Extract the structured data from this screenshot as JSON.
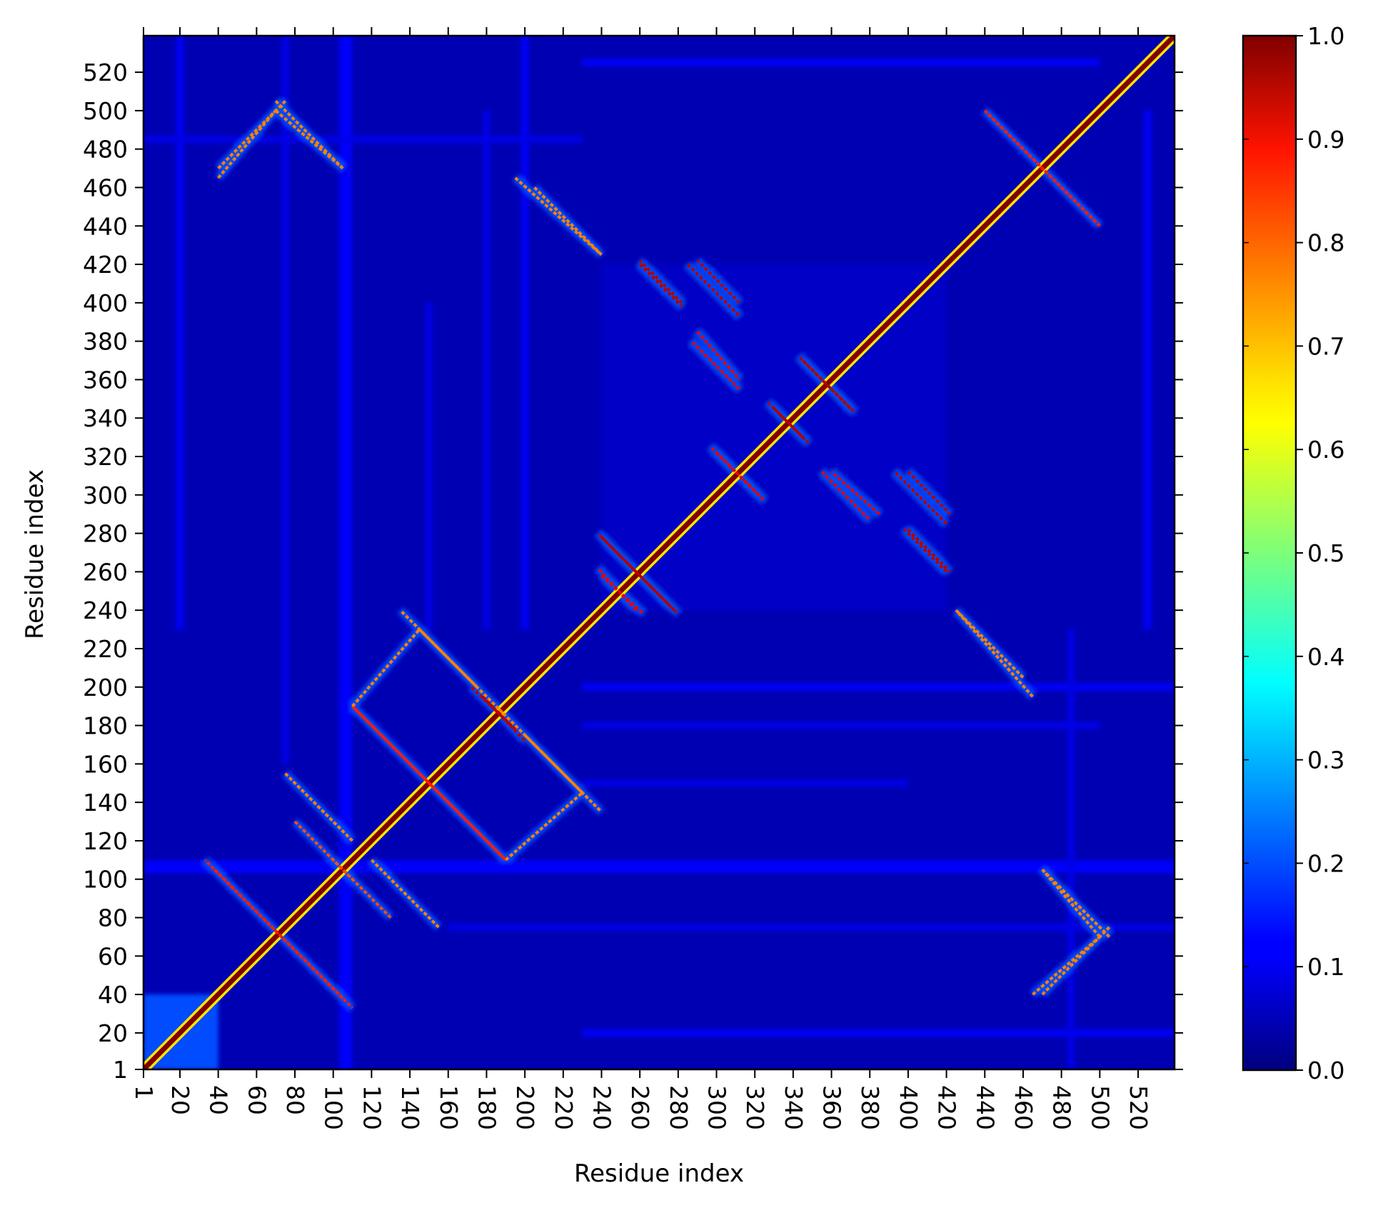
{
  "chart_data": {
    "type": "heatmap",
    "title": "",
    "xlabel": "Residue index",
    "ylabel": "Residue index",
    "xlim": [
      1,
      539
    ],
    "ylim": [
      1,
      539
    ],
    "x_ticks": [
      1,
      20,
      40,
      60,
      80,
      100,
      120,
      140,
      160,
      180,
      200,
      220,
      240,
      260,
      280,
      300,
      320,
      340,
      360,
      380,
      400,
      420,
      440,
      460,
      480,
      500,
      520
    ],
    "y_ticks": [
      1,
      20,
      40,
      60,
      80,
      100,
      120,
      140,
      160,
      180,
      200,
      220,
      240,
      260,
      280,
      300,
      320,
      340,
      360,
      380,
      400,
      420,
      440,
      460,
      480,
      500,
      520
    ],
    "x_tick_rotation": "vertical",
    "colormap": "jet",
    "colorbar": {
      "range": [
        0.0,
        1.0
      ],
      "ticks": [
        "0.0",
        "0.1",
        "0.2",
        "0.3",
        "0.4",
        "0.5",
        "0.6",
        "0.7",
        "0.8",
        "0.9",
        "1.0"
      ],
      "placement": "right"
    },
    "background_value": 0.05,
    "matrix_symmetric": true,
    "features": [
      {
        "kind": "diagonal",
        "from": 1,
        "to": 539,
        "value": 1.0
      },
      {
        "kind": "block",
        "x": [
          1,
          40
        ],
        "y": [
          1,
          40
        ],
        "value": 0.2
      },
      {
        "kind": "stripe",
        "axis": "y",
        "at": 105,
        "range": [
          1,
          539
        ],
        "value": 0.12
      },
      {
        "kind": "stripe",
        "axis": "y",
        "at": 75,
        "range": [
          160,
          539
        ],
        "value": 0.1
      },
      {
        "kind": "stripe",
        "axis": "y",
        "at": 200,
        "range": [
          230,
          539
        ],
        "value": 0.12
      },
      {
        "kind": "stripe",
        "axis": "y",
        "at": 150,
        "range": [
          230,
          400
        ],
        "value": 0.1
      },
      {
        "kind": "stripe",
        "axis": "y",
        "at": 20,
        "range": [
          230,
          539
        ],
        "value": 0.12
      },
      {
        "kind": "stripe",
        "axis": "y",
        "at": 525,
        "range": [
          230,
          500
        ],
        "value": 0.12
      },
      {
        "kind": "stripe",
        "axis": "x",
        "at": 108,
        "range": [
          1,
          539
        ],
        "value": 0.12
      },
      {
        "kind": "stripe",
        "axis": "x",
        "at": 180,
        "range": [
          230,
          500
        ],
        "value": 0.1
      },
      {
        "kind": "stripe",
        "axis": "x",
        "at": 485,
        "range": [
          1,
          230
        ],
        "value": 0.1
      },
      {
        "kind": "block",
        "x": [
          240,
          420
        ],
        "y": [
          240,
          420
        ],
        "value": 0.07
      },
      {
        "kind": "antidiagonal",
        "from": [
          38,
          105
        ],
        "to": [
          110,
          33
        ],
        "value": 0.85
      },
      {
        "kind": "antidiagonal",
        "from": [
          40,
          465
        ],
        "to": [
          70,
          500
        ],
        "value": 0.75
      },
      {
        "kind": "antidiagonal",
        "from": [
          70,
          500
        ],
        "to": [
          105,
          470
        ],
        "value": 0.75
      },
      {
        "kind": "antidiagonal",
        "from": [
          75,
          155
        ],
        "to": [
          110,
          120
        ],
        "value": 0.75
      },
      {
        "kind": "antidiagonal",
        "from": [
          80,
          130
        ],
        "to": [
          110,
          100
        ],
        "value": 0.8
      },
      {
        "kind": "antidiagonal",
        "from": [
          110,
          190
        ],
        "to": [
          190,
          110
        ],
        "value": 0.85
      },
      {
        "kind": "antidiagonal",
        "from": [
          110,
          190
        ],
        "to": [
          145,
          230
        ],
        "value": 0.75
      },
      {
        "kind": "antidiagonal",
        "from": [
          145,
          230
        ],
        "to": [
          190,
          185
        ],
        "value": 0.75
      },
      {
        "kind": "antidiagonal",
        "from": [
          178,
          195
        ],
        "to": [
          200,
          172
        ],
        "value": 0.95
      },
      {
        "kind": "antidiagonal",
        "from": [
          200,
          175
        ],
        "to": [
          240,
          135
        ],
        "value": 0.75
      },
      {
        "kind": "antidiagonal",
        "from": [
          195,
          465
        ],
        "to": [
          240,
          425
        ],
        "value": 0.75
      },
      {
        "kind": "antidiagonal",
        "from": [
          240,
          278
        ],
        "to": [
          280,
          238
        ],
        "value": 0.95
      },
      {
        "kind": "antidiagonal",
        "from": [
          240,
          258
        ],
        "to": [
          262,
          238
        ],
        "value": 0.9
      },
      {
        "kind": "antidiagonal",
        "from": [
          260,
          420
        ],
        "to": [
          282,
          398
        ],
        "value": 0.95
      },
      {
        "kind": "antidiagonal",
        "from": [
          285,
          420
        ],
        "to": [
          312,
          393
        ],
        "value": 0.95
      },
      {
        "kind": "antidiagonal",
        "from": [
          290,
          385
        ],
        "to": [
          312,
          360
        ],
        "value": 0.9
      },
      {
        "kind": "antidiagonal",
        "from": [
          300,
          322
        ],
        "to": [
          325,
          297
        ],
        "value": 0.9
      },
      {
        "kind": "antidiagonal",
        "from": [
          330,
          345
        ],
        "to": [
          348,
          327
        ],
        "value": 0.95
      },
      {
        "kind": "antidiagonal",
        "from": [
          345,
          370
        ],
        "to": [
          372,
          343
        ],
        "value": 0.95
      },
      {
        "kind": "antidiagonal",
        "from": [
          355,
          312
        ],
        "to": [
          380,
          287
        ],
        "value": 0.9
      },
      {
        "kind": "antidiagonal",
        "from": [
          400,
          312
        ],
        "to": [
          422,
          290
        ],
        "value": 0.95
      },
      {
        "kind": "antidiagonal",
        "from": [
          400,
          282
        ],
        "to": [
          422,
          260
        ],
        "value": 0.95
      },
      {
        "kind": "antidiagonal",
        "from": [
          425,
          240
        ],
        "to": [
          460,
          205
        ],
        "value": 0.75
      },
      {
        "kind": "antidiagonal",
        "from": [
          440,
          500
        ],
        "to": [
          500,
          440
        ],
        "value": 0.85
      },
      {
        "kind": "antidiagonal",
        "from": [
          470,
          40
        ],
        "to": [
          505,
          75
        ],
        "value": 0.75
      },
      {
        "kind": "antidiagonal",
        "from": [
          470,
          105
        ],
        "to": [
          505,
          70
        ],
        "value": 0.75
      }
    ]
  }
}
